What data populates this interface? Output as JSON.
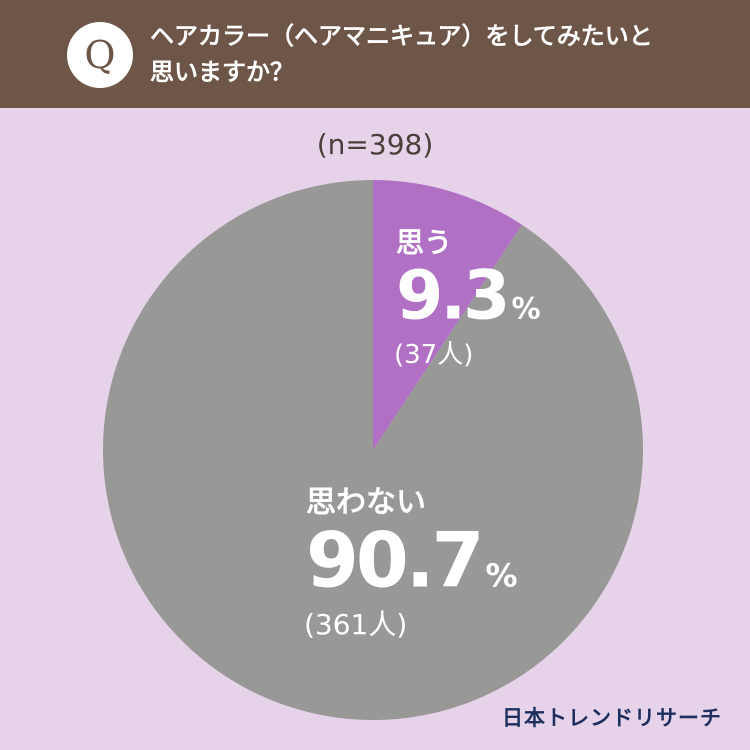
{
  "question": {
    "badge": "Q",
    "line1": "ヘアカラー（ヘアマニキュア）をしてみたいと",
    "line2": "思いますか？"
  },
  "sample_size": "(n=398)",
  "brand": "日本トレンドリサーチ",
  "colors": {
    "header_bg": "#6d5647",
    "page_bg": "#e6d3ea",
    "yes_slice": "#b070c4",
    "no_slice": "#989896",
    "label_text": "#ffffff",
    "brand_text": "#1e2f5e"
  },
  "chart_data": {
    "type": "pie",
    "total": 398,
    "slices": [
      {
        "label": "思う",
        "percent": 9.3,
        "percent_text": "9.3",
        "count_text": "(37人)",
        "count": 37,
        "color": "#b070c4"
      },
      {
        "label": "思わない",
        "percent": 90.7,
        "percent_text": "90.7",
        "count_text": "(361人)",
        "count": 361,
        "color": "#989896"
      }
    ]
  }
}
